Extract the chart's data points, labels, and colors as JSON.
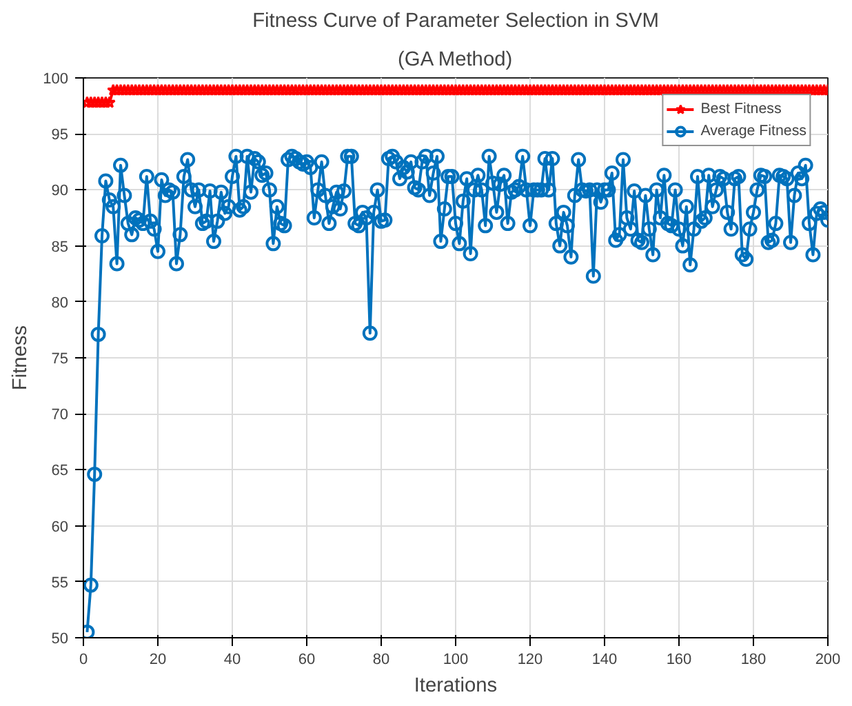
{
  "chart_data": {
    "type": "line",
    "title": "Fitness Curve of Parameter Selection in SVM",
    "subtitle": "(GA Method)",
    "xlabel": "Iterations",
    "ylabel": "Fitness",
    "x": [
      1,
      2,
      3,
      4,
      5,
      6,
      7,
      8,
      9,
      10,
      11,
      12,
      13,
      14,
      15,
      16,
      17,
      18,
      19,
      20,
      21,
      22,
      23,
      24,
      25,
      26,
      27,
      28,
      29,
      30,
      31,
      32,
      33,
      34,
      35,
      36,
      37,
      38,
      39,
      40,
      41,
      42,
      43,
      44,
      45,
      46,
      47,
      48,
      49,
      50,
      51,
      52,
      53,
      54,
      55,
      56,
      57,
      58,
      59,
      60,
      61,
      62,
      63,
      64,
      65,
      66,
      67,
      68,
      69,
      70,
      71,
      72,
      73,
      74,
      75,
      76,
      77,
      78,
      79,
      80,
      81,
      82,
      83,
      84,
      85,
      86,
      87,
      88,
      89,
      90,
      91,
      92,
      93,
      94,
      95,
      96,
      97,
      98,
      99,
      100,
      101,
      102,
      103,
      104,
      105,
      106,
      107,
      108,
      109,
      110,
      111,
      112,
      113,
      114,
      115,
      116,
      117,
      118,
      119,
      120,
      121,
      122,
      123,
      124,
      125,
      126,
      127,
      128,
      129,
      130,
      131,
      132,
      133,
      134,
      135,
      136,
      137,
      138,
      139,
      140,
      141,
      142,
      143,
      144,
      145,
      146,
      147,
      148,
      149,
      150,
      151,
      152,
      153,
      154,
      155,
      156,
      157,
      158,
      159,
      160,
      161,
      162,
      163,
      164,
      165,
      166,
      167,
      168,
      169,
      170,
      171,
      172,
      173,
      174,
      175,
      176,
      177,
      178,
      179,
      180,
      181,
      182,
      183,
      184,
      185,
      186,
      187,
      188,
      189,
      190,
      191,
      192,
      193,
      194,
      195,
      196,
      197,
      198,
      199,
      200
    ],
    "xlim": [
      0,
      200
    ],
    "ylim": [
      50,
      100
    ],
    "xticks": [
      0,
      20,
      40,
      60,
      80,
      100,
      120,
      140,
      160,
      180,
      200
    ],
    "yticks": [
      50,
      55,
      60,
      65,
      70,
      75,
      80,
      85,
      90,
      95,
      100
    ],
    "grid": true,
    "legend": "top right",
    "series": [
      {
        "name": "Best Fitness",
        "color": "#ff0000",
        "marker": "star",
        "values": [
          97.8,
          97.8,
          97.8,
          97.8,
          97.8,
          97.8,
          97.8,
          98.9,
          98.9,
          98.9,
          98.9,
          98.9,
          98.9,
          98.9,
          98.9,
          98.9,
          98.9,
          98.9,
          98.9,
          98.9,
          98.9,
          98.9,
          98.9,
          98.9,
          98.9,
          98.9,
          98.9,
          98.9,
          98.9,
          98.9,
          98.9,
          98.9,
          98.9,
          98.9,
          98.9,
          98.9,
          98.9,
          98.9,
          98.9,
          98.9,
          98.9,
          98.9,
          98.9,
          98.9,
          98.9,
          98.9,
          98.9,
          98.9,
          98.9,
          98.9,
          98.9,
          98.9,
          98.9,
          98.9,
          98.9,
          98.9,
          98.9,
          98.9,
          98.9,
          98.9,
          98.9,
          98.9,
          98.9,
          98.9,
          98.9,
          98.9,
          98.9,
          98.9,
          98.9,
          98.9,
          98.9,
          98.9,
          98.9,
          98.9,
          98.9,
          98.9,
          98.9,
          98.9,
          98.9,
          98.9,
          98.9,
          98.9,
          98.9,
          98.9,
          98.9,
          98.9,
          98.9,
          98.9,
          98.9,
          98.9,
          98.9,
          98.9,
          98.9,
          98.9,
          98.9,
          98.9,
          98.9,
          98.9,
          98.9,
          98.9,
          98.9,
          98.9,
          98.9,
          98.9,
          98.9,
          98.9,
          98.9,
          98.9,
          98.9,
          98.9,
          98.9,
          98.9,
          98.9,
          98.9,
          98.9,
          98.9,
          98.9,
          98.9,
          98.9,
          98.9,
          98.9,
          98.9,
          98.9,
          98.9,
          98.9,
          98.9,
          98.9,
          98.9,
          98.9,
          98.9,
          98.9,
          98.9,
          98.9,
          98.9,
          98.9,
          98.9,
          98.9,
          98.9,
          98.9,
          98.9,
          98.9,
          98.9,
          98.9,
          98.9,
          98.9,
          98.9,
          98.9,
          98.9,
          98.9,
          98.9,
          98.9,
          98.9,
          98.9,
          98.9,
          98.9,
          98.9,
          98.9,
          98.9,
          98.9,
          98.9,
          98.9,
          98.9,
          98.9,
          98.9,
          98.9,
          98.9,
          98.9,
          98.9,
          98.9,
          98.9,
          98.9,
          98.9,
          98.9,
          98.9,
          98.9,
          98.9,
          98.9,
          98.9,
          98.9,
          98.9,
          98.9,
          98.9,
          98.9,
          98.9,
          98.9,
          98.9,
          98.9,
          98.9,
          98.9,
          98.9,
          98.9,
          98.9,
          98.9,
          98.9,
          98.9,
          98.9,
          98.9,
          98.9,
          98.9,
          98.9
        ]
      },
      {
        "name": "Average Fitness",
        "color": "#0072bd",
        "marker": "circle",
        "values": [
          50.5,
          54.7,
          64.6,
          77.1,
          85.9,
          90.8,
          89.1,
          88.5,
          83.4,
          92.2,
          89.5,
          87,
          86,
          87.5,
          87.3,
          87,
          91.2,
          87.2,
          86.5,
          84.5,
          90.9,
          89.5,
          90,
          89.8,
          83.4,
          86,
          91.2,
          92.7,
          90,
          88.5,
          90,
          87,
          87.2,
          89.9,
          85.4,
          87.2,
          89.8,
          87.9,
          88.5,
          91.2,
          93,
          88.2,
          88.5,
          93,
          89.8,
          92.8,
          92.5,
          91.3,
          91.5,
          90,
          85.2,
          88.5,
          87,
          86.8,
          92.7,
          93,
          92.8,
          92.5,
          92.3,
          92.5,
          92,
          87.5,
          90,
          92.5,
          89.5,
          87,
          88.5,
          89.8,
          88.3,
          89.9,
          93,
          93,
          87,
          86.8,
          88,
          87.5,
          77.2,
          88,
          90,
          87.2,
          87.3,
          92.8,
          93,
          92.5,
          91,
          92,
          91.6,
          92.5,
          90.2,
          90,
          92.5,
          93,
          89.5,
          91.5,
          93,
          85.4,
          88.3,
          91.2,
          91.2,
          87,
          85.2,
          89,
          91,
          84.3,
          90,
          91.3,
          90,
          86.8,
          93,
          90.6,
          88,
          90.5,
          91.3,
          87,
          89.8,
          90,
          90.3,
          93,
          90,
          86.8,
          90,
          90,
          90,
          92.8,
          90,
          92.8,
          87,
          85,
          88,
          86.8,
          84,
          89.5,
          92.7,
          90,
          89.9,
          90,
          82.3,
          90,
          88.9,
          90,
          90,
          91.5,
          85.5,
          86,
          92.7,
          87.5,
          86.5,
          89.9,
          85.5,
          85.3,
          89.5,
          86.5,
          84.2,
          90,
          87.5,
          91.3,
          87,
          86.8,
          90,
          86.5,
          85,
          88.5,
          83.3,
          86.5,
          91.2,
          87.2,
          87.5,
          91.3,
          88.5,
          90,
          91.2,
          91,
          88,
          86.5,
          91,
          91.2,
          84.2,
          83.8,
          86.5,
          88,
          90,
          91.3,
          91.2,
          85.3,
          85.5,
          87,
          91.3,
          91.2,
          91,
          85.3,
          89.5,
          91.5,
          91,
          92.2,
          87,
          84.2,
          87.9,
          88.3,
          88,
          87.3
        ]
      }
    ]
  }
}
